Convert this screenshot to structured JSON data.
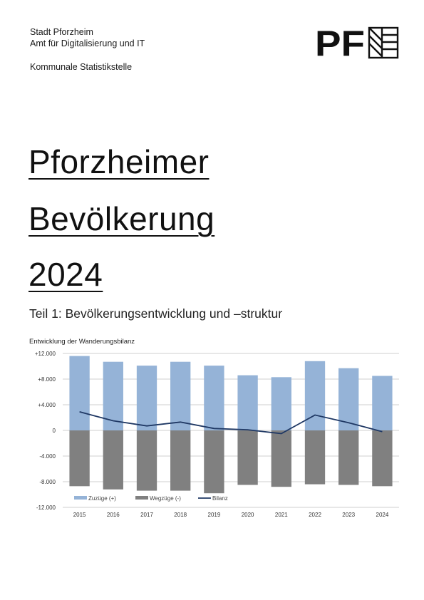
{
  "header": {
    "org_line1": "Stadt Pforzheim",
    "org_line2": "Amt für Digitalisierung und IT",
    "org_line3": "Kommunale Statistikstelle",
    "logo_text": "PF",
    "logo_icon": "pf-pattern-icon"
  },
  "title": {
    "line1": "Pforzheimer",
    "line2": "Bevölkerung",
    "line3": "2024"
  },
  "subtitle": "Teil 1: Bevölkerungsentwicklung und –struktur",
  "colors": {
    "zuzuege": "#95b3d7",
    "wegzuege": "#808080",
    "bilanz": "#1f3864",
    "grid": "#bfbfbf"
  },
  "chart_data": {
    "type": "bar",
    "title": "Entwicklung der Wanderungsbilanz",
    "categories": [
      "2015",
      "2016",
      "2017",
      "2018",
      "2019",
      "2020",
      "2021",
      "2022",
      "2023",
      "2024"
    ],
    "series": [
      {
        "name": "Zuzüge (+)",
        "type": "bar",
        "values": [
          11600,
          10700,
          10100,
          10700,
          10100,
          8600,
          8300,
          10800,
          9700,
          8500
        ]
      },
      {
        "name": "Wegzüge (-)",
        "type": "bar",
        "values": [
          -8700,
          -9200,
          -9400,
          -9400,
          -9800,
          -8500,
          -8800,
          -8400,
          -8500,
          -8700
        ]
      },
      {
        "name": "Bilanz",
        "type": "line",
        "values": [
          2900,
          1500,
          700,
          1300,
          300,
          100,
          -500,
          2400,
          1200,
          -200
        ]
      }
    ],
    "y_ticks": [
      "+12.000",
      "+8.000",
      "+4.000",
      "0",
      "-4.000",
      "-8.000",
      "-12.000"
    ],
    "ylim": [
      -12000,
      12000
    ],
    "grid": true,
    "legend": "bottom"
  }
}
